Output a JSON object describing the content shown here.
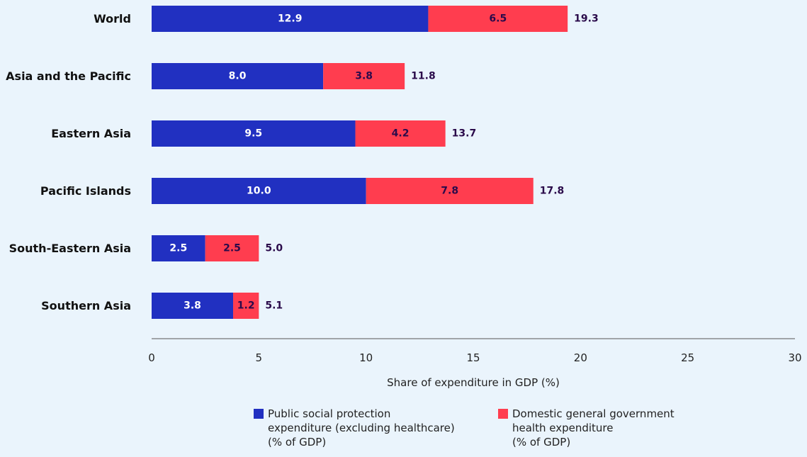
{
  "chart_data": {
    "type": "bar",
    "orientation": "horizontal",
    "stacked": true,
    "categories": [
      "World",
      "Asia and the Pacific",
      "Eastern Asia",
      "Pacific Islands",
      "South-Eastern Asia",
      "Southern Asia"
    ],
    "series": [
      {
        "name": "Public social protection expenditure (excluding healthcare) (% of GDP)",
        "name_lines": [
          "Public social protection",
          "expenditure (excluding healthcare)",
          "(% of GDP)"
        ],
        "color": "#2130c1",
        "label_color": "#ffffff",
        "values": [
          12.9,
          8.0,
          9.5,
          10.0,
          2.5,
          3.8
        ],
        "labels": [
          "12.9",
          "8.0",
          "9.5",
          "10.0",
          "2.5",
          "3.8"
        ]
      },
      {
        "name": "Domestic general government health expenditure (% of GDP)",
        "name_lines": [
          "Domestic general government",
          "health expenditure",
          "(% of GDP)"
        ],
        "color": "#ff3d4f",
        "label_color": "#2a0a4a",
        "values": [
          6.5,
          3.8,
          4.2,
          7.8,
          2.5,
          1.2
        ],
        "labels": [
          "6.5",
          "3.8",
          "4.2",
          "7.8",
          "2.5",
          "1.2"
        ]
      }
    ],
    "totals": [
      "19.3",
      "11.8",
      "13.7",
      "17.8",
      "5.0",
      "5.1"
    ],
    "totals_color": "#2a0a4a",
    "xlim": [
      0,
      30
    ],
    "xticks": [
      "0",
      "5",
      "10",
      "15",
      "20",
      "25",
      "30"
    ],
    "xlabel": "Share of expenditure in GDP (%)",
    "ylabel": "",
    "grid": false,
    "legend_position": "bottom"
  }
}
